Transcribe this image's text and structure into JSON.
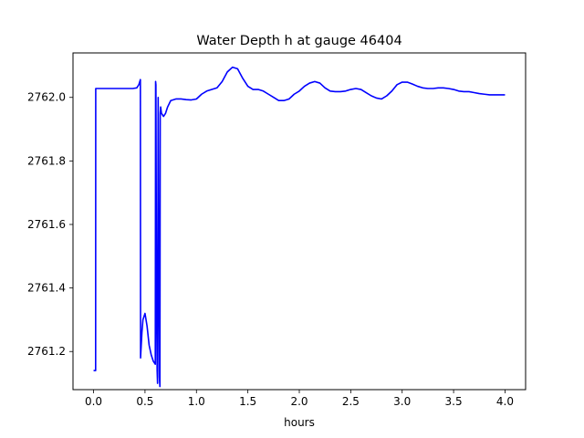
{
  "chart_data": {
    "type": "line",
    "title": "Water Depth h at gauge 46404",
    "xlabel": "hours",
    "ylabel": "",
    "xlim": [
      -0.2,
      4.2
    ],
    "ylim": [
      2761.08,
      2762.14
    ],
    "xticks": [
      0.0,
      0.5,
      1.0,
      1.5,
      2.0,
      2.5,
      3.0,
      3.5,
      4.0
    ],
    "xtick_labels": [
      "0.0",
      "0.5",
      "1.0",
      "1.5",
      "2.0",
      "2.5",
      "3.0",
      "3.5",
      "4.0"
    ],
    "yticks": [
      2761.2,
      2761.4,
      2761.6,
      2761.8,
      2762.0
    ],
    "ytick_labels": [
      "2761.2",
      "2761.4",
      "2761.6",
      "2761.8",
      "2762.0"
    ],
    "grid": false,
    "series": [
      {
        "color": "#0000ff",
        "x": [
          0.0,
          0.02,
          0.021,
          0.03,
          0.1,
          0.2,
          0.3,
          0.38,
          0.42,
          0.44,
          0.455,
          0.457,
          0.46,
          0.47,
          0.48,
          0.5,
          0.52,
          0.54,
          0.56,
          0.58,
          0.6,
          0.603,
          0.606,
          0.612,
          0.618,
          0.622,
          0.628,
          0.634,
          0.64,
          0.645,
          0.648,
          0.652,
          0.656,
          0.66,
          0.68,
          0.7,
          0.72,
          0.75,
          0.8,
          0.85,
          0.9,
          0.95,
          1.0,
          1.05,
          1.1,
          1.15,
          1.2,
          1.25,
          1.3,
          1.35,
          1.4,
          1.45,
          1.5,
          1.55,
          1.6,
          1.65,
          1.7,
          1.75,
          1.8,
          1.85,
          1.9,
          1.95,
          2.0,
          2.05,
          2.1,
          2.15,
          2.2,
          2.25,
          2.3,
          2.35,
          2.4,
          2.45,
          2.5,
          2.55,
          2.6,
          2.65,
          2.7,
          2.75,
          2.8,
          2.85,
          2.9,
          2.95,
          3.0,
          3.05,
          3.1,
          3.15,
          3.2,
          3.25,
          3.3,
          3.35,
          3.4,
          3.45,
          3.5,
          3.55,
          3.6,
          3.65,
          3.7,
          3.75,
          3.8,
          3.85,
          3.9,
          3.95,
          4.0
        ],
        "y": [
          2761.14,
          2761.14,
          2762.028,
          2762.028,
          2762.028,
          2762.028,
          2762.028,
          2762.028,
          2762.03,
          2762.04,
          2762.056,
          2761.18,
          2761.2,
          2761.26,
          2761.3,
          2761.32,
          2761.28,
          2761.22,
          2761.19,
          2761.17,
          2761.16,
          2762.05,
          2762.04,
          2761.35,
          2761.14,
          2761.1,
          2762.0,
          2761.5,
          2761.12,
          2761.09,
          2761.95,
          2761.97,
          2761.96,
          2761.95,
          2761.94,
          2761.95,
          2761.97,
          2761.99,
          2761.995,
          2761.995,
          2761.993,
          2761.992,
          2761.995,
          2762.01,
          2762.02,
          2762.025,
          2762.03,
          2762.05,
          2762.08,
          2762.095,
          2762.09,
          2762.06,
          2762.035,
          2762.025,
          2762.025,
          2762.02,
          2762.01,
          2762.0,
          2761.99,
          2761.99,
          2761.995,
          2762.01,
          2762.02,
          2762.035,
          2762.045,
          2762.05,
          2762.045,
          2762.03,
          2762.02,
          2762.018,
          2762.018,
          2762.02,
          2762.025,
          2762.028,
          2762.025,
          2762.015,
          2762.005,
          2761.998,
          2761.995,
          2762.005,
          2762.02,
          2762.04,
          2762.048,
          2762.048,
          2762.042,
          2762.035,
          2762.03,
          2762.028,
          2762.028,
          2762.03,
          2762.03,
          2762.028,
          2762.025,
          2762.02,
          2762.018,
          2762.018,
          2762.015,
          2762.012,
          2762.01,
          2762.008,
          2762.008,
          2762.008,
          2762.008
        ]
      }
    ]
  }
}
